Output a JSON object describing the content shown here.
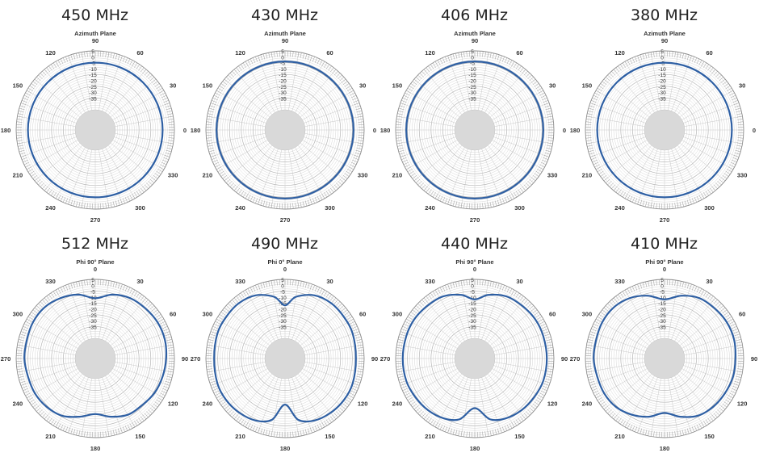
{
  "chart_data": [
    {
      "type": "polar",
      "title": "450 MHz",
      "subtitle": "Azimuth Plane",
      "angle_labels": [
        "0",
        "30",
        "60",
        "90",
        "120",
        "150",
        "180",
        "210",
        "240",
        "270",
        "300",
        "330"
      ],
      "zero_at": "right",
      "rlabels": [
        "5",
        "0",
        "-5",
        "-10",
        "-15",
        "-20",
        "-25",
        "-30",
        "-35"
      ],
      "rlim": [
        -45,
        5
      ],
      "series": [
        {
          "kind": "omni",
          "points": [
            {
              "angle": 0,
              "value": -5
            },
            {
              "angle": 90,
              "value": -5
            },
            {
              "angle": 180,
              "value": -5
            },
            {
              "angle": 270,
              "value": -5
            }
          ],
          "color": "#2e5fa3"
        }
      ]
    },
    {
      "type": "polar",
      "title": "430 MHz",
      "subtitle": "Azimuth Plane",
      "angle_labels": [
        "0",
        "30",
        "60",
        "90",
        "120",
        "150",
        "180",
        "210",
        "240",
        "270",
        "300",
        "330"
      ],
      "zero_at": "right",
      "rlabels": [
        "5",
        "0",
        "-5",
        "-10",
        "-15",
        "-20",
        "-25",
        "-30",
        "-35"
      ],
      "rlim": [
        -45,
        5
      ],
      "series": [
        {
          "kind": "omni",
          "points": [
            {
              "angle": 0,
              "value": -4
            },
            {
              "angle": 90,
              "value": -4
            },
            {
              "angle": 180,
              "value": -4
            },
            {
              "angle": 270,
              "value": -4
            }
          ],
          "color": "#2e5fa3"
        }
      ]
    },
    {
      "type": "polar",
      "title": "406 MHz",
      "subtitle": "Azimuth Plane",
      "angle_labels": [
        "0",
        "30",
        "60",
        "90",
        "120",
        "150",
        "180",
        "210",
        "240",
        "270",
        "300",
        "330"
      ],
      "zero_at": "right",
      "rlabels": [
        "5",
        "0",
        "-5",
        "-10",
        "-15",
        "-20",
        "-25",
        "-30",
        "-35"
      ],
      "rlim": [
        -45,
        5
      ],
      "series": [
        {
          "kind": "omni",
          "points": [
            {
              "angle": 0,
              "value": -4
            },
            {
              "angle": 90,
              "value": -4
            },
            {
              "angle": 180,
              "value": -4
            },
            {
              "angle": 270,
              "value": -4
            }
          ],
          "color": "#2e5fa3"
        }
      ]
    },
    {
      "type": "polar",
      "title": "380 MHz",
      "subtitle": "Azimuth Plane",
      "angle_labels": [
        "0",
        "30",
        "60",
        "90",
        "120",
        "150",
        "180",
        "210",
        "240",
        "270",
        "300",
        "330"
      ],
      "zero_at": "right",
      "rlabels": [
        "5",
        "0",
        "-5",
        "-10",
        "-15",
        "-20",
        "-25",
        "-30",
        "-35"
      ],
      "rlim": [
        -45,
        5
      ],
      "series": [
        {
          "kind": "omni",
          "points": [
            {
              "angle": 0,
              "value": -5
            },
            {
              "angle": 90,
              "value": -5
            },
            {
              "angle": 180,
              "value": -5
            },
            {
              "angle": 270,
              "value": -5
            }
          ],
          "color": "#2e5fa3"
        }
      ]
    },
    {
      "type": "polar",
      "title": "512 MHz",
      "subtitle": "Phi 90° Plane",
      "angle_labels": [
        "0",
        "30",
        "60",
        "90",
        "120",
        "150",
        "180",
        "210",
        "240",
        "270",
        "300",
        "330"
      ],
      "zero_at": "top",
      "rlabels": [
        "5",
        "0",
        "-5",
        "-10",
        "-15",
        "-20",
        "-25",
        "-30",
        "-35"
      ],
      "rlim": [
        -45,
        5
      ],
      "series": [
        {
          "kind": "elevation",
          "points": [
            {
              "angle": 0,
              "value": -11
            },
            {
              "angle": 15,
              "value": -6
            },
            {
              "angle": 30,
              "value": -3
            },
            {
              "angle": 45,
              "value": -2
            },
            {
              "angle": 60,
              "value": -1
            },
            {
              "angle": 75,
              "value": -1
            },
            {
              "angle": 90,
              "value": -2
            },
            {
              "angle": 105,
              "value": -3
            },
            {
              "angle": 120,
              "value": -4
            },
            {
              "angle": 135,
              "value": -6
            },
            {
              "angle": 150,
              "value": -7
            },
            {
              "angle": 165,
              "value": -11
            },
            {
              "angle": 180,
              "value": -15
            },
            {
              "angle": 195,
              "value": -11
            },
            {
              "angle": 210,
              "value": -6
            },
            {
              "angle": 225,
              "value": -4
            },
            {
              "angle": 240,
              "value": -3
            },
            {
              "angle": 255,
              "value": -3
            },
            {
              "angle": 270,
              "value": -2
            },
            {
              "angle": 285,
              "value": -2
            },
            {
              "angle": 300,
              "value": -1
            },
            {
              "angle": 315,
              "value": -1
            },
            {
              "angle": 330,
              "value": -3
            },
            {
              "angle": 345,
              "value": -6
            }
          ],
          "color": "#2e5fa3"
        }
      ]
    },
    {
      "type": "polar",
      "title": "490 MHz",
      "subtitle": "Phi 0° Plane",
      "angle_labels": [
        "0",
        "30",
        "60",
        "90",
        "120",
        "150",
        "180",
        "210",
        "240",
        "270",
        "300",
        "330"
      ],
      "zero_at": "top",
      "rlabels": [
        "5",
        "0",
        "-5",
        "-10",
        "-15",
        "-20",
        "-25",
        "-30",
        "-35"
      ],
      "rlim": [
        -45,
        5
      ],
      "series": [
        {
          "kind": "elevation",
          "points": [
            {
              "angle": 0,
              "value": -17
            },
            {
              "angle": 10,
              "value": -9
            },
            {
              "angle": 25,
              "value": -3
            },
            {
              "angle": 40,
              "value": -1
            },
            {
              "angle": 55,
              "value": -1
            },
            {
              "angle": 70,
              "value": -1
            },
            {
              "angle": 90,
              "value": -2
            },
            {
              "angle": 110,
              "value": -1
            },
            {
              "angle": 125,
              "value": -1
            },
            {
              "angle": 140,
              "value": -2
            },
            {
              "angle": 155,
              "value": -4
            },
            {
              "angle": 168,
              "value": -9
            },
            {
              "angle": 180,
              "value": -23
            },
            {
              "angle": 192,
              "value": -9
            },
            {
              "angle": 205,
              "value": -4
            },
            {
              "angle": 220,
              "value": -2
            },
            {
              "angle": 235,
              "value": -1
            },
            {
              "angle": 250,
              "value": -1
            },
            {
              "angle": 270,
              "value": -2
            },
            {
              "angle": 290,
              "value": -1
            },
            {
              "angle": 305,
              "value": -1
            },
            {
              "angle": 320,
              "value": -1
            },
            {
              "angle": 335,
              "value": -3
            },
            {
              "angle": 350,
              "value": -9
            }
          ],
          "color": "#2e5fa3"
        }
      ]
    },
    {
      "type": "polar",
      "title": "440 MHz",
      "subtitle": "Phi 90° Plane",
      "angle_labels": [
        "0",
        "30",
        "60",
        "90",
        "120",
        "150",
        "180",
        "210",
        "240",
        "270",
        "300",
        "330"
      ],
      "zero_at": "top",
      "rlabels": [
        "5",
        "0",
        "-5",
        "-10",
        "-15",
        "-20",
        "-25",
        "-30",
        "-35"
      ],
      "rlim": [
        -45,
        5
      ],
      "series": [
        {
          "kind": "elevation",
          "points": [
            {
              "angle": 0,
              "value": -12
            },
            {
              "angle": 12,
              "value": -7
            },
            {
              "angle": 27,
              "value": -3
            },
            {
              "angle": 42,
              "value": -2
            },
            {
              "angle": 57,
              "value": -1
            },
            {
              "angle": 72,
              "value": -1
            },
            {
              "angle": 90,
              "value": -1
            },
            {
              "angle": 108,
              "value": -1
            },
            {
              "angle": 123,
              "value": -2
            },
            {
              "angle": 138,
              "value": -3
            },
            {
              "angle": 153,
              "value": -5
            },
            {
              "angle": 166,
              "value": -9
            },
            {
              "angle": 180,
              "value": -20
            },
            {
              "angle": 194,
              "value": -9
            },
            {
              "angle": 207,
              "value": -5
            },
            {
              "angle": 222,
              "value": -3
            },
            {
              "angle": 237,
              "value": -2
            },
            {
              "angle": 252,
              "value": -1
            },
            {
              "angle": 270,
              "value": -1
            },
            {
              "angle": 288,
              "value": -1
            },
            {
              "angle": 303,
              "value": -1
            },
            {
              "angle": 318,
              "value": -2
            },
            {
              "angle": 333,
              "value": -3
            },
            {
              "angle": 348,
              "value": -7
            }
          ],
          "color": "#2e5fa3"
        }
      ]
    },
    {
      "type": "polar",
      "title": "410 MHz",
      "subtitle": "Phi 90° Plane",
      "angle_labels": [
        "0",
        "30",
        "60",
        "90",
        "120",
        "150",
        "180",
        "210",
        "240",
        "270",
        "300",
        "330"
      ],
      "zero_at": "top",
      "rlabels": [
        "5",
        "0",
        "-5",
        "-10",
        "-15",
        "-20",
        "-25",
        "-30",
        "-35"
      ],
      "rlim": [
        -45,
        5
      ],
      "series": [
        {
          "kind": "elevation",
          "points": [
            {
              "angle": 0,
              "value": -12
            },
            {
              "angle": 15,
              "value": -7
            },
            {
              "angle": 30,
              "value": -3
            },
            {
              "angle": 45,
              "value": -2
            },
            {
              "angle": 60,
              "value": -1
            },
            {
              "angle": 75,
              "value": -1
            },
            {
              "angle": 90,
              "value": -2
            },
            {
              "angle": 105,
              "value": -2
            },
            {
              "angle": 120,
              "value": -3
            },
            {
              "angle": 135,
              "value": -4
            },
            {
              "angle": 150,
              "value": -6
            },
            {
              "angle": 165,
              "value": -11
            },
            {
              "angle": 180,
              "value": -16
            },
            {
              "angle": 195,
              "value": -11
            },
            {
              "angle": 210,
              "value": -7
            },
            {
              "angle": 225,
              "value": -4
            },
            {
              "angle": 240,
              "value": -3
            },
            {
              "angle": 255,
              "value": -3
            },
            {
              "angle": 270,
              "value": -2
            },
            {
              "angle": 285,
              "value": -2
            },
            {
              "angle": 300,
              "value": -1
            },
            {
              "angle": 315,
              "value": -1
            },
            {
              "angle": 330,
              "value": -3
            },
            {
              "angle": 345,
              "value": -7
            }
          ],
          "color": "#2e5fa3"
        }
      ]
    }
  ]
}
